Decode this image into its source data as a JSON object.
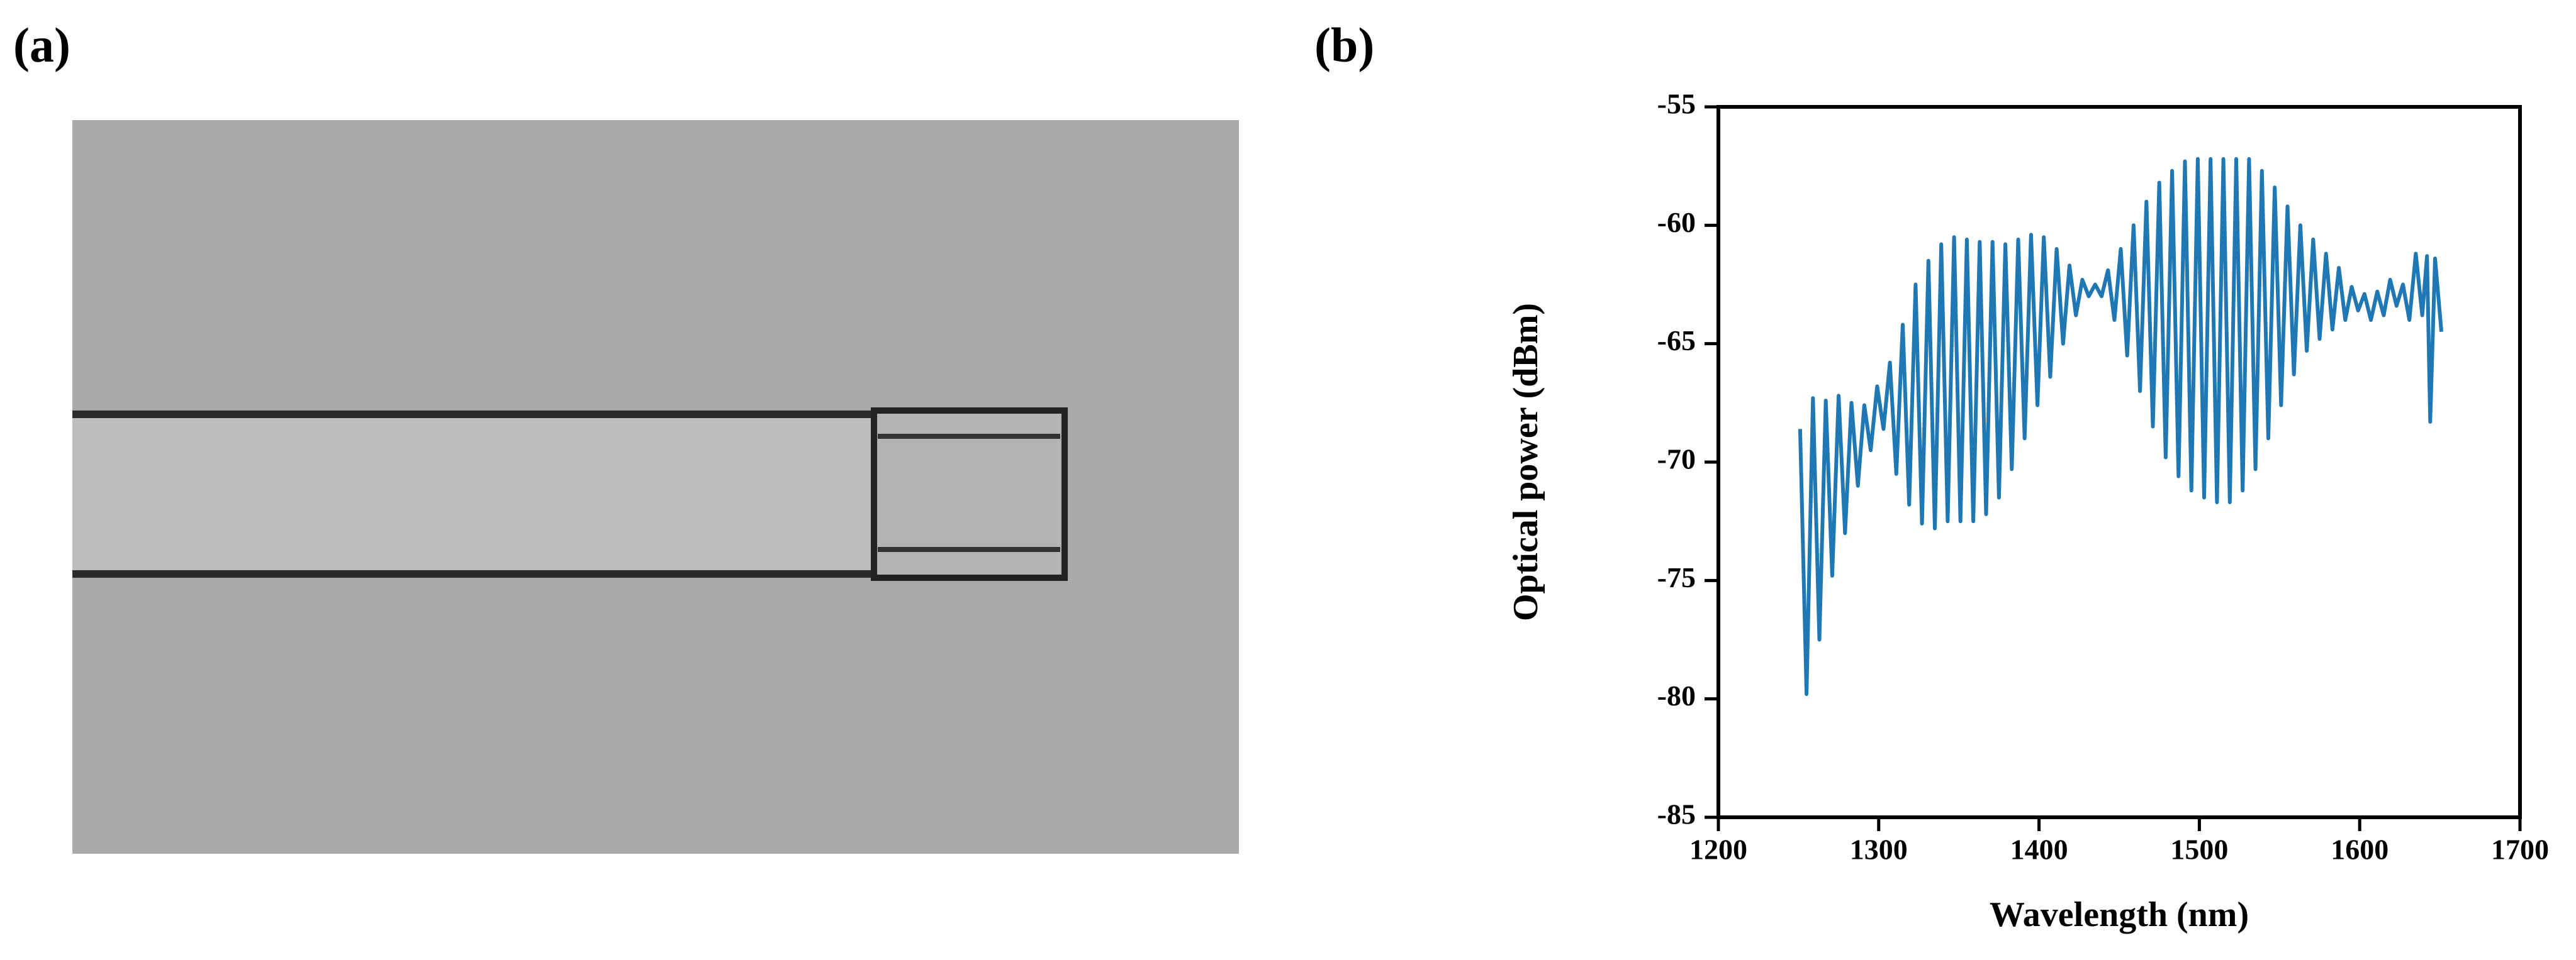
{
  "panel_labels": [
    "(a)",
    "(b)"
  ],
  "chart_data": {
    "type": "line",
    "xlabel": "Wavelength (nm)",
    "ylabel": "Optical power (dBm)",
    "color": "#1f77b4",
    "xlim": [
      1200,
      1700
    ],
    "xticks": [
      1200,
      1300,
      1400,
      1500,
      1600,
      1700
    ],
    "ylim": [
      -85,
      -55
    ],
    "yticks": [
      -85,
      -80,
      -75,
      -70,
      -65,
      -60,
      -55
    ],
    "x": [
      1251,
      1255,
      1259,
      1263,
      1267,
      1271,
      1275,
      1279,
      1283,
      1287,
      1291,
      1295,
      1299,
      1303,
      1307,
      1311,
      1315,
      1319,
      1323,
      1327,
      1331,
      1335,
      1339,
      1343,
      1347,
      1351,
      1355,
      1359,
      1363,
      1367,
      1371,
      1375,
      1379,
      1383,
      1387,
      1391,
      1395,
      1399,
      1403,
      1407,
      1411,
      1415,
      1419,
      1423,
      1427,
      1431,
      1435,
      1439,
      1443,
      1447,
      1451,
      1455,
      1459,
      1463,
      1467,
      1471,
      1475,
      1479,
      1483,
      1487,
      1491,
      1495,
      1499,
      1503,
      1507,
      1511,
      1515,
      1519,
      1523,
      1527,
      1531,
      1535,
      1539,
      1543,
      1547,
      1551,
      1555,
      1559,
      1563,
      1567,
      1571,
      1575,
      1579,
      1583,
      1587,
      1591,
      1595,
      1599,
      1603,
      1607,
      1611,
      1615,
      1619,
      1623,
      1627,
      1631,
      1635,
      1639,
      1642,
      1644,
      1647,
      1651
    ],
    "values": [
      -68.6,
      -79.8,
      -67.3,
      -77.5,
      -67.4,
      -74.8,
      -67.2,
      -73,
      -67.5,
      -71,
      -67.6,
      -69.5,
      -66.8,
      -68.6,
      -65.8,
      -70.5,
      -64.2,
      -71.8,
      -62.5,
      -72.6,
      -61.5,
      -72.8,
      -60.8,
      -72.5,
      -60.5,
      -72.5,
      -60.6,
      -72.5,
      -60.7,
      -72.2,
      -60.7,
      -71.5,
      -60.8,
      -70.3,
      -60.6,
      -69,
      -60.4,
      -67.6,
      -60.5,
      -66.4,
      -61,
      -65,
      -61.7,
      -63.8,
      -62.3,
      -63,
      -62.5,
      -63,
      -61.9,
      -64,
      -61,
      -65.5,
      -60,
      -67,
      -59,
      -68.5,
      -58.2,
      -69.8,
      -57.7,
      -70.6,
      -57.3,
      -71.2,
      -57.2,
      -71.5,
      -57.2,
      -71.7,
      -57.2,
      -71.7,
      -57.2,
      -71.2,
      -57.2,
      -70.3,
      -57.7,
      -69,
      -58.4,
      -67.6,
      -59.2,
      -66.3,
      -60,
      -65.3,
      -60.6,
      -64.8,
      -61.2,
      -64.4,
      -61.8,
      -64,
      -62.6,
      -63.6,
      -62.9,
      -64,
      -62.8,
      -63.8,
      -62.3,
      -63.4,
      -62.5,
      -64,
      -61.2,
      -63.8,
      -61.3,
      -68.3,
      -61.4,
      -64.5
    ]
  }
}
